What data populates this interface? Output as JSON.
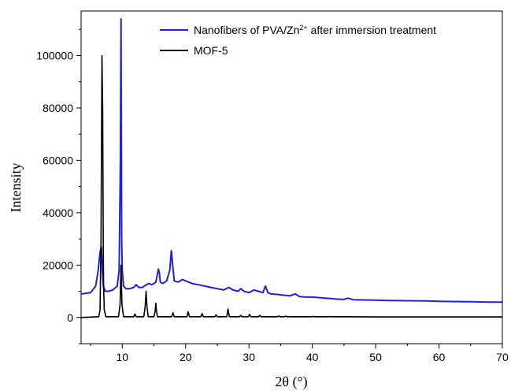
{
  "chart_data": {
    "type": "line",
    "title": "",
    "xlabel": "2θ (°)",
    "ylabel": "Intensity",
    "xlim": [
      3.5,
      70
    ],
    "ylim": [
      -10000,
      117000
    ],
    "x_ticks": [
      10,
      20,
      30,
      40,
      50,
      60,
      70
    ],
    "y_ticks": [
      0,
      20000,
      40000,
      60000,
      80000,
      100000
    ],
    "y_tick_labels": [
      "0",
      "20000",
      "40000",
      "60000",
      "80000",
      "100000"
    ],
    "grid": false,
    "legend_position": "top",
    "series": [
      {
        "name": "Nanofibers  of PVA/Zn²⁺ after immersion treatment",
        "legend_label_parts": [
          "Nanofibers  of PVA/Zn",
          "2+",
          " after immersion treatment"
        ],
        "color": "#1f1fdc",
        "x": [
          3.5,
          5.0,
          5.8,
          6.2,
          6.5,
          6.7,
          6.85,
          7.0,
          7.3,
          7.8,
          8.5,
          9.2,
          9.5,
          9.7,
          9.8,
          9.85,
          9.9,
          10.0,
          10.2,
          10.6,
          11.2,
          11.8,
          12.2,
          12.6,
          13.2,
          13.8,
          14.2,
          14.7,
          15.3,
          15.7,
          15.85,
          16.0,
          16.4,
          17.0,
          17.5,
          17.75,
          17.95,
          18.2,
          18.8,
          19.5,
          20.0,
          21.0,
          22.0,
          23.0,
          24.0,
          25.0,
          26.0,
          26.8,
          27.5,
          28.3,
          28.7,
          29.2,
          30.0,
          30.8,
          31.5,
          32.2,
          32.6,
          33.0,
          33.5,
          34.5,
          35.5,
          36.5,
          37.3,
          38.0,
          39.0,
          40.0,
          41.0,
          42.0,
          43.0,
          44.0,
          45.0,
          45.6,
          46.5,
          48.0,
          50.0,
          52.0,
          55.0,
          58.0,
          60.0,
          62.0,
          65.0,
          68.0,
          70.0
        ],
        "y": [
          9000,
          9500,
          12000,
          18000,
          25000,
          27000,
          18000,
          12000,
          10000,
          10000,
          10500,
          12000,
          18000,
          60000,
          114000,
          70000,
          30000,
          18000,
          12000,
          11000,
          11000,
          11500,
          12500,
          11500,
          11500,
          12500,
          13000,
          12500,
          13500,
          18500,
          17000,
          13500,
          13000,
          14000,
          18000,
          25500,
          20000,
          14000,
          13500,
          14500,
          14000,
          13000,
          12500,
          12000,
          11500,
          11000,
          10500,
          11500,
          10500,
          10000,
          11000,
          10000,
          9500,
          10500,
          10000,
          9500,
          12000,
          9500,
          9000,
          8800,
          8500,
          8300,
          9000,
          8000,
          7800,
          7800,
          7600,
          7400,
          7200,
          7000,
          6900,
          7400,
          6800,
          6700,
          6600,
          6500,
          6400,
          6300,
          6200,
          6100,
          6000,
          5900,
          5900
        ]
      },
      {
        "name": "MOF-5",
        "color": "#000000",
        "x": [
          3.5,
          6.3,
          6.5,
          6.65,
          6.8,
          6.9,
          6.95,
          7.0,
          7.05,
          7.15,
          7.4,
          9.4,
          9.65,
          9.8,
          9.95,
          10.2,
          11.8,
          12.0,
          12.2,
          13.4,
          13.6,
          13.75,
          13.9,
          14.1,
          15.0,
          15.2,
          15.3,
          15.4,
          15.55,
          17.8,
          18.0,
          18.2,
          20.2,
          20.4,
          20.6,
          22.4,
          22.6,
          22.8,
          24.6,
          24.8,
          25.0,
          26.5,
          26.7,
          26.9,
          28.5,
          28.7,
          28.9,
          29.9,
          30.1,
          30.3,
          31.5,
          31.7,
          31.9,
          34.5,
          34.7,
          34.9,
          35.6,
          35.8,
          36.0,
          40.0,
          40.2,
          40.4,
          42.5,
          42.7,
          42.9,
          45.2,
          45.4,
          45.6,
          50.0,
          55.0,
          60.0,
          65.0,
          70.0
        ],
        "y": [
          0,
          300,
          3000,
          30000,
          100000,
          80000,
          53000,
          25000,
          12000,
          3000,
          300,
          300,
          5000,
          20000,
          5000,
          300,
          300,
          1300,
          300,
          300,
          4000,
          10000,
          4000,
          300,
          300,
          2500,
          5500,
          2500,
          300,
          300,
          1800,
          300,
          300,
          2200,
          300,
          300,
          1500,
          300,
          300,
          1000,
          300,
          300,
          3200,
          300,
          300,
          800,
          300,
          300,
          1200,
          300,
          300,
          800,
          300,
          300,
          600,
          300,
          300,
          500,
          300,
          300,
          400,
          300,
          300,
          350,
          300,
          300,
          300,
          300,
          200,
          200,
          200,
          200,
          200
        ]
      }
    ]
  }
}
